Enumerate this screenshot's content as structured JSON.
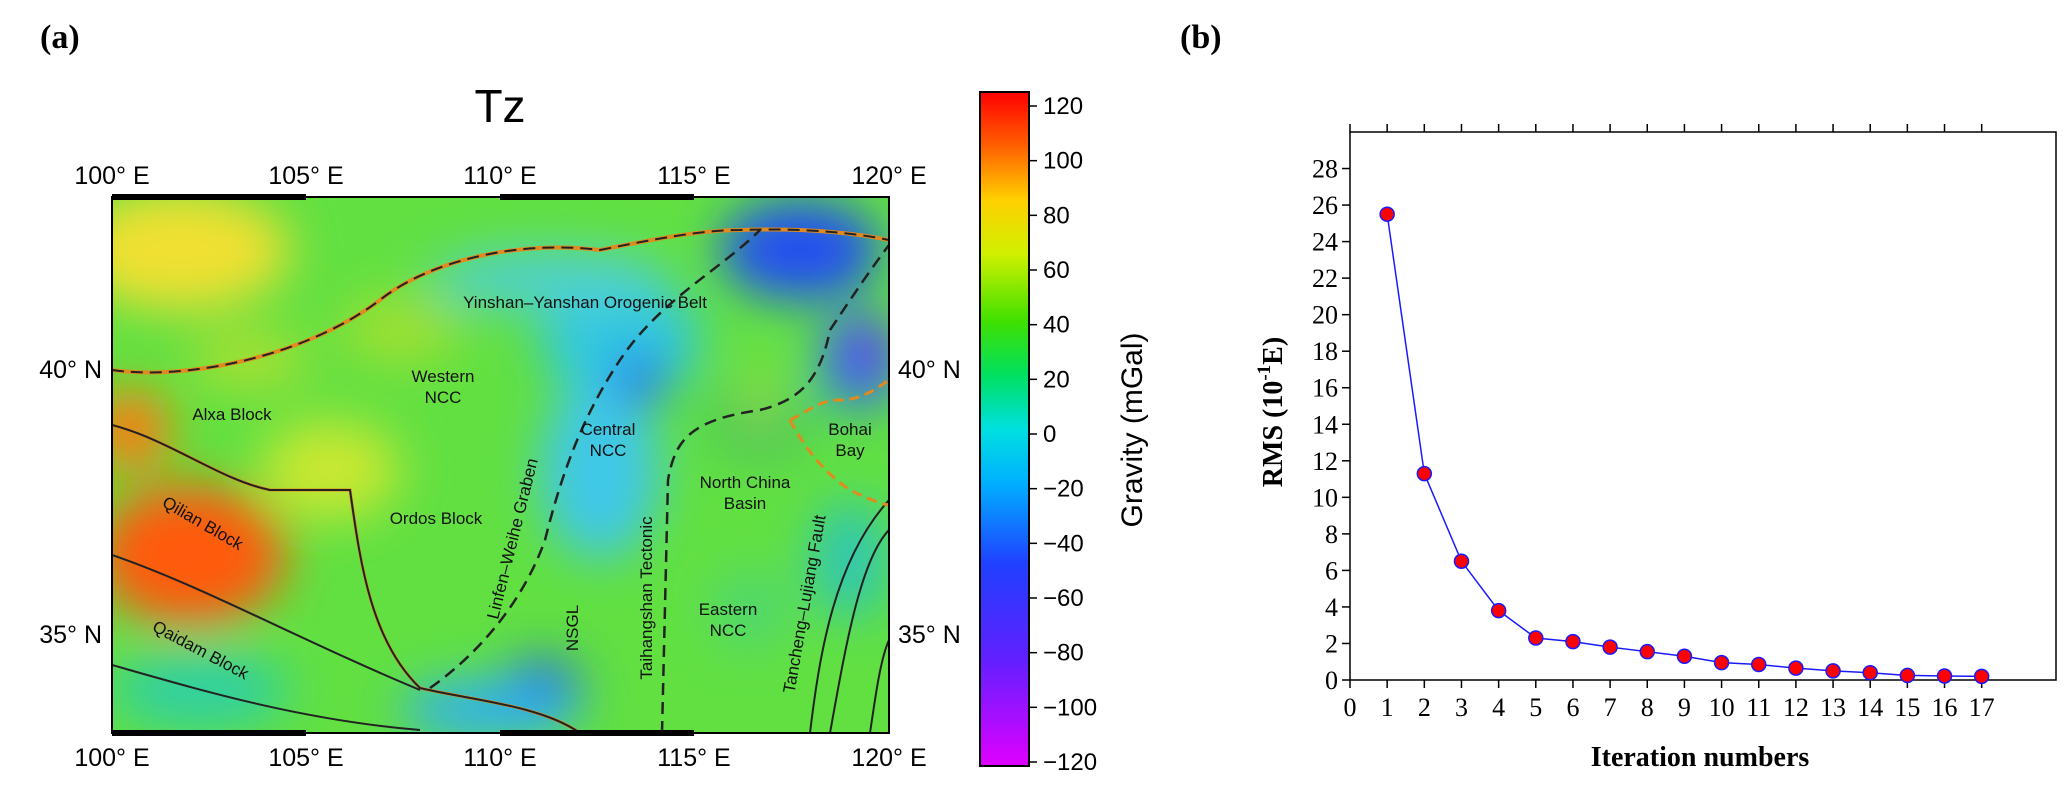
{
  "panel_a": {
    "label": "(a)",
    "title": "Tz",
    "lon_ticks": [
      "100° E",
      "105° E",
      "110° E",
      "115° E",
      "120° E"
    ],
    "lat_ticks": [
      "40° N",
      "35° N"
    ],
    "regions": [
      {
        "name": "alxa",
        "lines": [
          "Alxa Block"
        ]
      },
      {
        "name": "western-ncc",
        "lines": [
          "Western",
          "NCC"
        ]
      },
      {
        "name": "central-ncc",
        "lines": [
          "Central",
          "NCC"
        ]
      },
      {
        "name": "north-china-basin",
        "lines": [
          "North China",
          "Basin"
        ]
      },
      {
        "name": "bohai",
        "lines": [
          "Bohai",
          "Bay"
        ]
      },
      {
        "name": "ordos",
        "lines": [
          "Ordos Block"
        ]
      },
      {
        "name": "eastern-ncc",
        "lines": [
          "Eastern",
          "NCC"
        ]
      },
      {
        "name": "yinshan",
        "lines": [
          "Yinshan–Yanshan Orogenic Belt"
        ]
      },
      {
        "name": "qilian",
        "lines": [
          "Qilian Block"
        ]
      },
      {
        "name": "qaidam",
        "lines": [
          "Qaidam Block"
        ]
      },
      {
        "name": "linfen",
        "lines": [
          "Linfen–Weihe Graben"
        ]
      },
      {
        "name": "nsgl",
        "lines": [
          "NSGL"
        ]
      },
      {
        "name": "taihangshan",
        "lines": [
          "Taihangshan Tectonic"
        ]
      },
      {
        "name": "tancheng",
        "lines": [
          "Tancheng–Lujiang Fault"
        ]
      }
    ],
    "colorbar": {
      "label": "Gravity (mGal)",
      "ticks": [
        "120",
        "100",
        "80",
        "60",
        "40",
        "20",
        "0",
        "−20",
        "−40",
        "−60",
        "−80",
        "−100",
        "−120"
      ]
    }
  },
  "panel_b": {
    "label": "(b)"
  },
  "chart_data": {
    "type": "line",
    "title": "",
    "xlabel": "Iteration numbers",
    "ylabel_main": "RMS (10",
    "ylabel_sup": "-1",
    "ylabel_tail": "E)",
    "xlim": [
      0,
      19
    ],
    "ylim": [
      0,
      30
    ],
    "x_ticks": [
      0,
      1,
      2,
      3,
      4,
      5,
      6,
      7,
      8,
      9,
      10,
      11,
      12,
      13,
      14,
      15,
      16,
      17
    ],
    "y_ticks": [
      0,
      2,
      4,
      6,
      8,
      10,
      12,
      14,
      16,
      18,
      20,
      22,
      24,
      26,
      28
    ],
    "series": [
      {
        "name": "RMS",
        "x": [
          1,
          2,
          3,
          4,
          5,
          6,
          7,
          8,
          9,
          10,
          11,
          12,
          13,
          14,
          15,
          16,
          17
        ],
        "values": [
          25.5,
          11.3,
          6.5,
          3.8,
          2.3,
          2.1,
          1.8,
          1.55,
          1.3,
          0.95,
          0.85,
          0.65,
          0.5,
          0.4,
          0.25,
          0.22,
          0.2
        ]
      }
    ],
    "colors": {
      "line": "#1a1aff",
      "marker_fill": "#ff0000",
      "marker_edge": "#1a1aff"
    }
  }
}
